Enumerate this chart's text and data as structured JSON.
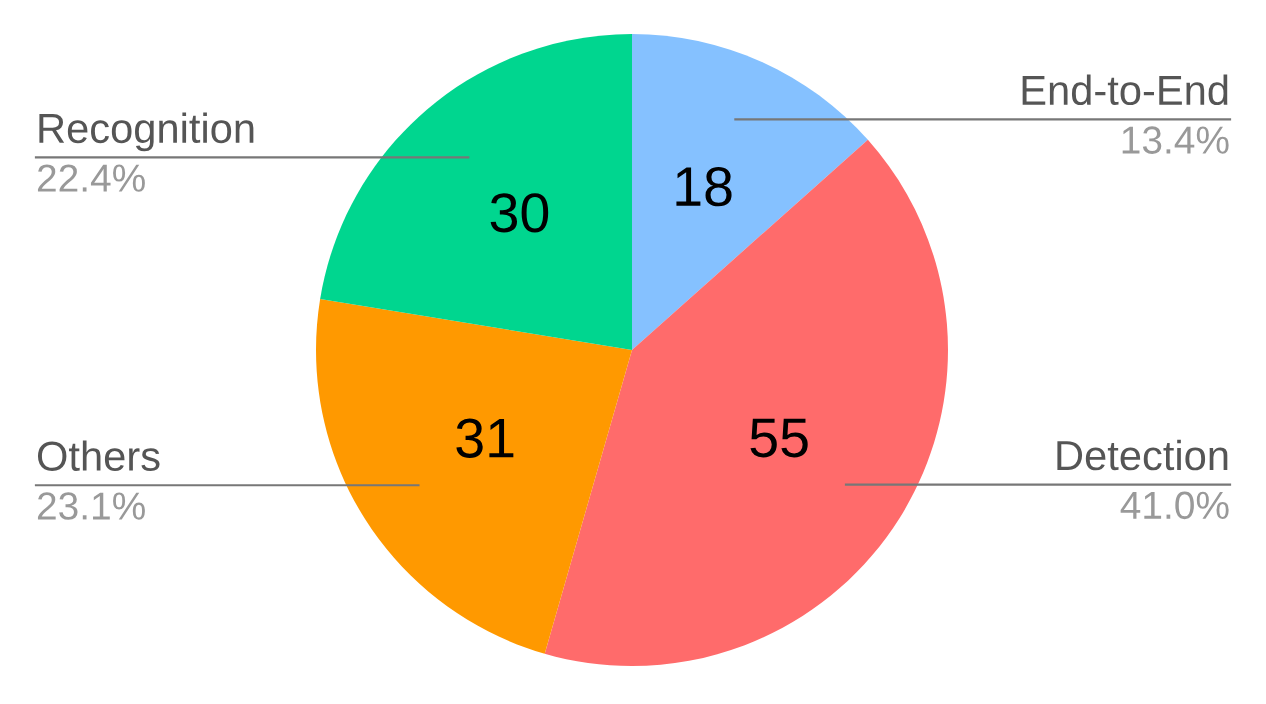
{
  "chart_data": {
    "type": "pie",
    "categories": [
      "End-to-End",
      "Detection",
      "Others",
      "Recognition"
    ],
    "values": [
      13.4,
      41.0,
      23.1,
      22.4
    ],
    "colors": [
      "#85c1ff",
      "#ff6b6b",
      "#ff9900",
      "#00d68f"
    ],
    "value_labels": [
      "13.4%",
      "41.0%",
      "23.1%",
      "22.4%"
    ],
    "annotations": [
      "18",
      "55",
      "31",
      "30"
    ]
  }
}
